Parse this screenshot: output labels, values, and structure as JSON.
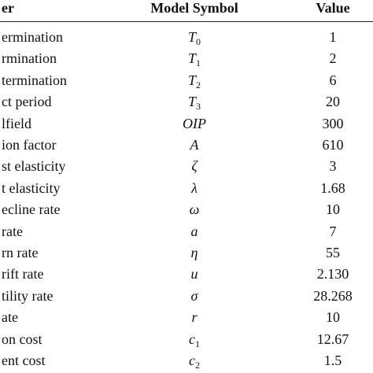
{
  "table": {
    "header": [
      "er",
      "Model Symbol",
      "Value"
    ],
    "rows": [
      [
        {
          "text": "ermination"
        },
        {
          "symbol": "T",
          "sub": "0"
        },
        "1"
      ],
      [
        {
          "text": "rmination"
        },
        {
          "symbol": "T",
          "sub": "1"
        },
        "2"
      ],
      [
        {
          "text": "termination"
        },
        {
          "symbol": "T",
          "sub": "2"
        },
        "6"
      ],
      [
        {
          "text": "ct period"
        },
        {
          "symbol": "T",
          "sub": "3"
        },
        "20"
      ],
      [
        {
          "text": "lfield"
        },
        {
          "symbol": "OIP"
        },
        "300"
      ],
      [
        {
          "text": "ion factor"
        },
        {
          "symbol": "A"
        },
        "610"
      ],
      [
        {
          "text": "st elasticity"
        },
        {
          "symbol": "ζ"
        },
        "3"
      ],
      [
        {
          "text": "t elasticity"
        },
        {
          "symbol": "λ"
        },
        "1.68"
      ],
      [
        {
          "text": "ecline rate"
        },
        {
          "symbol": "ω"
        },
        "10"
      ],
      [
        {
          "text": "rate"
        },
        {
          "symbol": "a"
        },
        "7"
      ],
      [
        {
          "text": "rn rate"
        },
        {
          "symbol": "η"
        },
        "55"
      ],
      [
        {
          "text": "rift rate"
        },
        {
          "symbol": "u"
        },
        "2.130"
      ],
      [
        {
          "text": "tility rate"
        },
        {
          "symbol": "σ"
        },
        "28.268"
      ],
      [
        {
          "text": "ate"
        },
        {
          "symbol": "r"
        },
        "10"
      ],
      [
        {
          "text": "on cost"
        },
        {
          "symbol": "c",
          "sub": "1"
        },
        "12.67"
      ],
      [
        {
          "text": "ent cost"
        },
        {
          "symbol": "c",
          "sub": "2"
        },
        "1.5"
      ]
    ]
  }
}
